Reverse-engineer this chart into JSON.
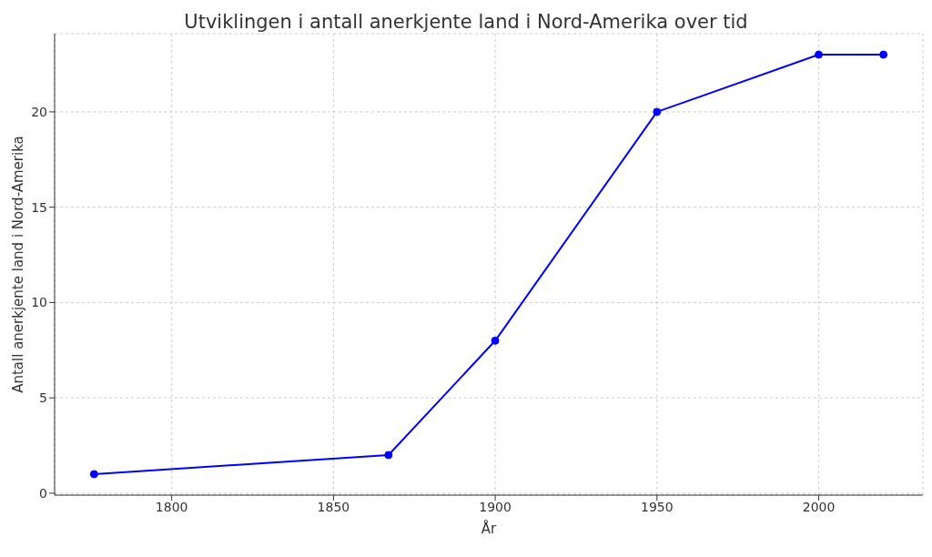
{
  "chart_data": {
    "type": "line",
    "title": "Utviklingen i antall anerkjente land i Nord-Amerika over tid",
    "xlabel": "År",
    "ylabel": "Antall anerkjente land i Nord-Amerika",
    "x": [
      1776,
      1867,
      1900,
      1950,
      2000,
      2020
    ],
    "series": [
      {
        "color": "#0000ff",
        "values": [
          1,
          2,
          8,
          20,
          23,
          23
        ]
      }
    ],
    "xlim": [
      1763.8,
      2032.2
    ],
    "xticks": [
      1800,
      1850,
      1900,
      1950,
      2000
    ],
    "ylim": [
      -0.1,
      24.1
    ],
    "yticks": [
      0,
      5,
      10,
      15,
      20
    ],
    "grid": true,
    "marker": "circle",
    "line_style": "solid",
    "legend": false
  }
}
